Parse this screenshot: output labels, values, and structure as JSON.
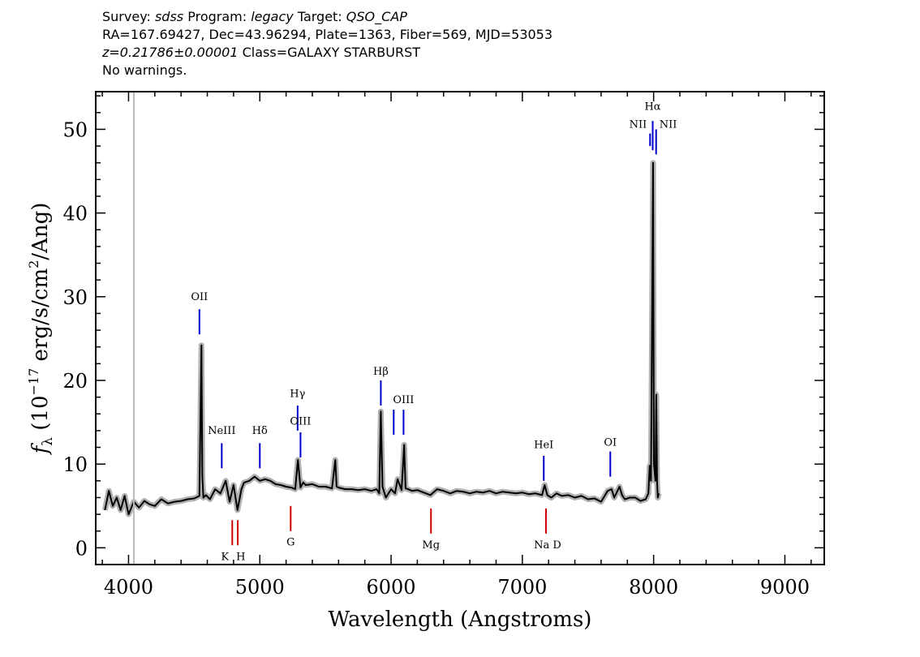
{
  "header": {
    "line1": [
      {
        "text": "Survey: ",
        "italic": false
      },
      {
        "text": "sdss",
        "italic": true
      },
      {
        "text": " Program: ",
        "italic": false
      },
      {
        "text": "legacy",
        "italic": true
      },
      {
        "text": " Target: ",
        "italic": false
      },
      {
        "text": "QSO_CAP",
        "italic": true
      }
    ],
    "line2": "RA=167.69427, Dec=43.96294, Plate=1363, Fiber=569, MJD=53053",
    "line3": [
      {
        "text": "z=0.21786±0.00001",
        "italic": true
      },
      {
        "text": " Class=GALAXY STARBURST",
        "italic": false
      }
    ],
    "line4": "No warnings."
  },
  "chart_data": {
    "type": "line",
    "xlabel": "Wavelength (Angstroms)",
    "ylabel": "f_λ (10^-17 erg/s/cm^2/Ang)",
    "xlim": [
      3750,
      9300
    ],
    "ylim": [
      -2,
      54.5
    ],
    "xticks": [
      4000,
      5000,
      6000,
      7000,
      8000,
      9000
    ],
    "yticks": [
      0,
      10,
      20,
      30,
      40,
      50
    ],
    "vline_gray_at": 4040,
    "series": [
      {
        "role": "flux",
        "color": "#000000",
        "x": [
          3820,
          3850,
          3880,
          3910,
          3940,
          3970,
          4000,
          4040,
          4080,
          4120,
          4160,
          4200,
          4250,
          4300,
          4350,
          4400,
          4450,
          4500,
          4540,
          4555,
          4562,
          4570,
          4590,
          4620,
          4660,
          4700,
          4740,
          4770,
          4800,
          4830,
          4860,
          4880,
          4920,
          4960,
          5000,
          5040,
          5080,
          5120,
          5160,
          5200,
          5240,
          5270,
          5290,
          5310,
          5330,
          5350,
          5400,
          5450,
          5500,
          5550,
          5575,
          5585,
          5600,
          5650,
          5700,
          5750,
          5800,
          5850,
          5890,
          5910,
          5922,
          5935,
          5960,
          6000,
          6030,
          6050,
          6080,
          6100,
          6110,
          6130,
          6160,
          6200,
          6250,
          6300,
          6350,
          6400,
          6450,
          6500,
          6550,
          6600,
          6650,
          6700,
          6750,
          6800,
          6850,
          6900,
          6950,
          7000,
          7050,
          7100,
          7150,
          7170,
          7190,
          7220,
          7260,
          7300,
          7350,
          7400,
          7450,
          7500,
          7550,
          7600,
          7650,
          7680,
          7700,
          7740,
          7760,
          7780,
          7820,
          7860,
          7900,
          7940,
          7960,
          7970,
          7980,
          7990,
          7996,
          8002,
          8008,
          8014,
          8020,
          8026,
          8032,
          8040
        ],
        "y": [
          4.5,
          6.8,
          5.0,
          6.0,
          4.5,
          6.2,
          4.0,
          5.5,
          4.8,
          5.6,
          5.2,
          5.0,
          5.8,
          5.3,
          5.5,
          5.6,
          5.8,
          5.9,
          6.2,
          24.2,
          8.5,
          6.0,
          6.3,
          5.8,
          7.0,
          6.5,
          8.0,
          5.5,
          7.5,
          4.5,
          7.0,
          7.8,
          8.0,
          8.5,
          8.0,
          8.2,
          8.0,
          7.6,
          7.5,
          7.3,
          7.2,
          7.0,
          10.5,
          7.2,
          7.8,
          7.5,
          7.6,
          7.3,
          7.3,
          7.1,
          10.5,
          7.3,
          7.2,
          7.0,
          7.0,
          6.9,
          7.0,
          6.8,
          7.0,
          6.5,
          16.3,
          7.3,
          6.0,
          7.0,
          6.5,
          8.2,
          6.9,
          12.3,
          7.1,
          7.0,
          6.8,
          6.9,
          6.6,
          6.3,
          7.0,
          6.8,
          6.5,
          6.8,
          6.7,
          6.5,
          6.7,
          6.6,
          6.8,
          6.5,
          6.7,
          6.6,
          6.5,
          6.6,
          6.4,
          6.5,
          6.3,
          7.5,
          6.3,
          6.0,
          6.5,
          6.2,
          6.3,
          6.0,
          6.2,
          5.8,
          5.9,
          5.5,
          6.8,
          7.0,
          6.0,
          7.3,
          6.3,
          5.8,
          6.0,
          6.0,
          5.6,
          5.8,
          6.5,
          9.8,
          8.0,
          31.0,
          46.0,
          10.0,
          9.0,
          8.0,
          18.3,
          8.0,
          6.0,
          6.5
        ]
      }
    ],
    "emission_lines": [
      {
        "label": "OII",
        "x": 4540,
        "y_bottom": 25.5,
        "y_top": 28.5,
        "color": "#0000cc",
        "label_y": 29.6
      },
      {
        "label": "NeIII",
        "x": 4710,
        "y_bottom": 9.5,
        "y_top": 12.5,
        "color": "#0000cc",
        "label_y": 13.6
      },
      {
        "label": "Hδ",
        "x": 5000,
        "y_bottom": 9.5,
        "y_top": 12.5,
        "color": "#0000cc",
        "label_y": 13.6
      },
      {
        "label": "Hγ",
        "x": 5288,
        "y_bottom": 14.0,
        "y_top": 17.0,
        "color": "#0000cc",
        "label_y": 18.0
      },
      {
        "label": "OIII",
        "x": 5310,
        "y_bottom": 10.8,
        "y_top": 13.8,
        "color": "#0000cc",
        "label_y": 14.7
      },
      {
        "label": "Hβ",
        "x": 5922,
        "y_bottom": 17.0,
        "y_top": 20.0,
        "color": "#0000cc",
        "label_y": 20.7
      },
      {
        "label": "OIII",
        "x": 6020,
        "y_bottom": 13.5,
        "y_top": 16.5,
        "color": "#0000cc",
        "label_y": ""
      },
      {
        "label": "OIII",
        "x": 6095,
        "y_bottom": 13.5,
        "y_top": 16.5,
        "color": "#0000cc",
        "label_y": 17.3
      },
      {
        "label": "HeI",
        "x": 7163,
        "y_bottom": 8.0,
        "y_top": 11.0,
        "color": "#0000cc",
        "label_y": 11.9
      },
      {
        "label": "OI",
        "x": 7670,
        "y_bottom": 8.5,
        "y_top": 11.5,
        "color": "#0000cc",
        "label_y": 12.2
      },
      {
        "label": "NII",
        "x": 7973,
        "y_bottom": 48.0,
        "y_top": 49.5,
        "color": "#0000cc",
        "label_y": 50.2
      },
      {
        "label": "Hα",
        "x": 7993,
        "y_bottom": 47.5,
        "y_top": 51.0,
        "color": "#0000cc",
        "label_y": 52.3
      },
      {
        "label": "NII",
        "x": 8019,
        "y_bottom": 47.0,
        "y_top": 50.0,
        "color": "#0000cc",
        "label_y": 50.2
      }
    ],
    "absorption_lines": [
      {
        "label": "K",
        "x": 4790,
        "y_bottom": 0.3,
        "y_top": 3.3,
        "color": "#cc0000"
      },
      {
        "label": "H",
        "x": 4832,
        "y_bottom": 0.3,
        "y_top": 3.3,
        "color": "#cc0000"
      },
      {
        "label": "G",
        "x": 5235,
        "y_bottom": 2.0,
        "y_top": 5.0,
        "color": "#cc0000"
      },
      {
        "label": "Mg",
        "x": 6304,
        "y_bottom": 1.7,
        "y_top": 4.7,
        "color": "#cc0000"
      },
      {
        "label": "Na D",
        "x": 7180,
        "y_bottom": 1.7,
        "y_top": 4.7,
        "color": "#cc0000"
      }
    ]
  }
}
